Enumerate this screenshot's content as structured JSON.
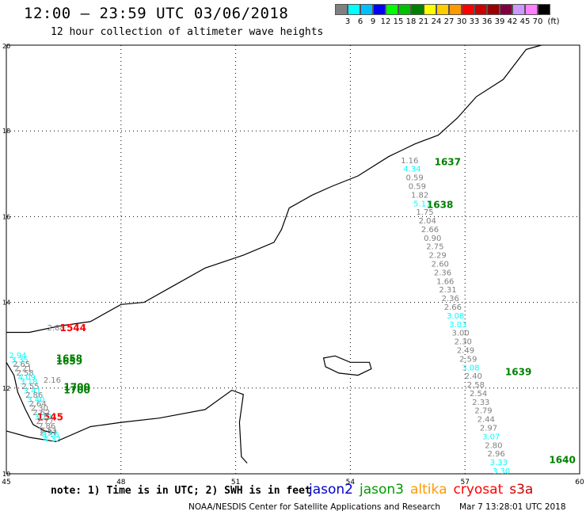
{
  "title": "12:00 – 23:59 UTC 03/06/2018",
  "subtitle": "12 hour collection of altimeter wave heights",
  "legend": {
    "unit": "(ft)",
    "bins": [
      {
        "label": "3",
        "color": "#808080"
      },
      {
        "label": "6",
        "color": "#00ffff"
      },
      {
        "label": "9",
        "color": "#00bfff"
      },
      {
        "label": "12",
        "color": "#0000ff"
      },
      {
        "label": "15",
        "color": "#00ff00"
      },
      {
        "label": "18",
        "color": "#00c000"
      },
      {
        "label": "21",
        "color": "#008000"
      },
      {
        "label": "24",
        "color": "#ffff00"
      },
      {
        "label": "27",
        "color": "#ffcc00"
      },
      {
        "label": "30",
        "color": "#ff9900"
      },
      {
        "label": "33",
        "color": "#ff0000"
      },
      {
        "label": "36",
        "color": "#cc0000"
      },
      {
        "label": "39",
        "color": "#990000"
      },
      {
        "label": "42",
        "color": "#800040"
      },
      {
        "label": "45",
        "color": "#cc99ff"
      },
      {
        "label": "70",
        "color": "#ff80ff"
      },
      {
        "label": "",
        "color": "#000000"
      }
    ]
  },
  "axes": {
    "lon_labels": [
      "45",
      "48",
      "51",
      "54",
      "57",
      "60"
    ],
    "lat_labels": [
      "20",
      "18",
      "16",
      "14",
      "12",
      "10"
    ],
    "lon_range": [
      45,
      60
    ],
    "lat_range": [
      10,
      20
    ]
  },
  "tracks": [
    {
      "satellite": "jason3",
      "lon_start": 55.55,
      "lat_start": 17.25,
      "lon_end": 57.95,
      "lat_end": 10.0,
      "values": [
        {
          "text": "1.16",
          "color": "#808080"
        },
        {
          "text": "4.34",
          "color": "#00ffff"
        },
        {
          "text": "0.59",
          "color": "#808080"
        },
        {
          "text": "0.59",
          "color": "#808080"
        },
        {
          "text": "1.82",
          "color": "#808080"
        },
        {
          "text": "5.17",
          "color": "#00ffff"
        },
        {
          "text": "1.75",
          "color": "#808080"
        },
        {
          "text": "2.04",
          "color": "#808080"
        },
        {
          "text": "2.66",
          "color": "#808080"
        },
        {
          "text": "0.90",
          "color": "#808080"
        },
        {
          "text": "2.75",
          "color": "#808080"
        },
        {
          "text": "2.29",
          "color": "#808080"
        },
        {
          "text": "2.60",
          "color": "#808080"
        },
        {
          "text": "2.36",
          "color": "#808080"
        },
        {
          "text": "1.66",
          "color": "#808080"
        },
        {
          "text": "2.31",
          "color": "#808080"
        },
        {
          "text": "2.36",
          "color": "#808080"
        },
        {
          "text": "2.66",
          "color": "#808080"
        },
        {
          "text": "3.08",
          "color": "#00ffff"
        },
        {
          "text": "3.03",
          "color": "#00ffff"
        },
        {
          "text": "3.00",
          "color": "#808080"
        },
        {
          "text": "2.30",
          "color": "#808080"
        },
        {
          "text": "2.49",
          "color": "#808080"
        },
        {
          "text": "2.59",
          "color": "#808080"
        },
        {
          "text": "3.08",
          "color": "#00ffff"
        },
        {
          "text": "2.40",
          "color": "#808080"
        },
        {
          "text": "2.58",
          "color": "#808080"
        },
        {
          "text": "2.54",
          "color": "#808080"
        },
        {
          "text": "2.33",
          "color": "#808080"
        },
        {
          "text": "2.79",
          "color": "#808080"
        },
        {
          "text": "2.44",
          "color": "#808080"
        },
        {
          "text": "2.97",
          "color": "#808080"
        },
        {
          "text": "3.07",
          "color": "#00ffff"
        },
        {
          "text": "2.80",
          "color": "#808080"
        },
        {
          "text": "2.96",
          "color": "#808080"
        },
        {
          "text": "3.33",
          "color": "#00ffff"
        },
        {
          "text": "3.30",
          "color": "#00ffff"
        }
      ],
      "times": [
        {
          "text": "1637",
          "lon": 56.2,
          "lat": 17.2,
          "color": "#008000"
        },
        {
          "text": "1638",
          "lon": 56.0,
          "lat": 16.2,
          "color": "#008000"
        },
        {
          "text": "1639",
          "lon": 58.05,
          "lat": 12.3,
          "color": "#008000"
        },
        {
          "text": "1640",
          "lon": 59.2,
          "lat": 10.25,
          "color": "#008000"
        }
      ]
    },
    {
      "satellite": "cryosat",
      "lon_start": 46.3,
      "lat_start": 13.35,
      "lon_end": 46.1,
      "lat_end": 10.9,
      "values": [
        {
          "text": "2.88",
          "color": "#808080"
        },
        {
          "text": "2.16",
          "color": "#808080"
        },
        {
          "text": "2.97",
          "color": "#808080"
        }
      ],
      "times": [
        {
          "text": "1544",
          "lon": 46.4,
          "lat": 13.33,
          "color": "#ff0000"
        },
        {
          "text": "1545",
          "lon": 45.8,
          "lat": 11.25,
          "color": "#ff0000"
        }
      ]
    },
    {
      "satellite": "jason3-west",
      "lon_start": 45.3,
      "lat_start": 12.7,
      "lon_end": 46.2,
      "lat_end": 10.75,
      "values": [
        {
          "text": "2.94",
          "color": "#00ffff"
        },
        {
          "text": "3.35",
          "color": "#00ffff"
        },
        {
          "text": "2.65",
          "color": "#808080"
        },
        {
          "text": "2.21",
          "color": "#808080"
        },
        {
          "text": "2.58",
          "color": "#808080"
        },
        {
          "text": "4.09",
          "color": "#00ffff"
        },
        {
          "text": "3.18",
          "color": "#00ffff"
        },
        {
          "text": "2.55",
          "color": "#808080"
        },
        {
          "text": "3.41",
          "color": "#00ffff"
        },
        {
          "text": "2.86",
          "color": "#808080"
        },
        {
          "text": "3.40",
          "color": "#00ffff"
        },
        {
          "text": "2.64",
          "color": "#808080"
        },
        {
          "text": "2.30",
          "color": "#808080"
        },
        {
          "text": "2.62",
          "color": "#808080"
        },
        {
          "text": "3.22",
          "color": "#00ffff"
        },
        {
          "text": "2.77",
          "color": "#808080"
        },
        {
          "text": "2.86",
          "color": "#808080"
        },
        {
          "text": "2.51",
          "color": "#808080"
        },
        {
          "text": "3.16",
          "color": "#00ffff"
        },
        {
          "text": "4.32",
          "color": "#00ffff"
        }
      ],
      "times": [
        {
          "text": "1658",
          "lon": 46.3,
          "lat": 12.62,
          "color": "#008000"
        },
        {
          "text": "1659",
          "lon": 46.3,
          "lat": 12.55,
          "color": "#008000"
        },
        {
          "text": "1700",
          "lon": 46.5,
          "lat": 11.95,
          "color": "#008000"
        },
        {
          "text": "1700",
          "lon": 46.5,
          "lat": 11.88,
          "color": "#008000"
        }
      ]
    }
  ],
  "note": "note: 1) Time is in UTC; 2) SWH is in feet",
  "satellites": [
    {
      "name": "jason2",
      "color": "#0000cc"
    },
    {
      "name": "jason3",
      "color": "#009900"
    },
    {
      "name": "altika",
      "color": "#ff9900"
    },
    {
      "name": "cryosat",
      "color": "#ff0000"
    },
    {
      "name": "s3a",
      "color": "#cc0000"
    }
  ],
  "credit": "NOAA/NESDIS Center for Satellite Applications and Research",
  "generated": "Mar  7 13:28:01 UTC 2018"
}
